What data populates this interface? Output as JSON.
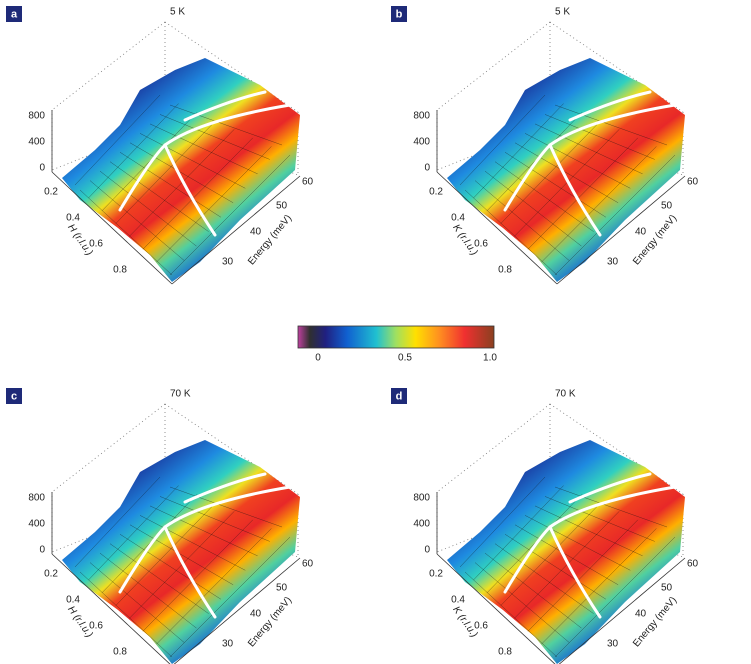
{
  "colorbar": {
    "ticks": [
      "0",
      "0.5",
      "1.0"
    ]
  },
  "panels": [
    {
      "label": "a",
      "temperature": "5 K",
      "z_ticks": [
        "800",
        "400",
        "0"
      ],
      "x_title": "H (r.l.u.)",
      "x_ticks": [
        "0.2",
        "0.4",
        "0.6",
        "0.8"
      ],
      "energy_title": "Energy (meV)",
      "energy_ticks": [
        "60",
        "50",
        "40",
        "30"
      ]
    },
    {
      "label": "b",
      "temperature": "5 K",
      "z_ticks": [
        "800",
        "400",
        "0"
      ],
      "x_title": "K (r.l.u.)",
      "x_ticks": [
        "0.2",
        "0.4",
        "0.6",
        "0.8"
      ],
      "energy_title": "Energy (meV)",
      "energy_ticks": [
        "60",
        "50",
        "40",
        "30"
      ]
    },
    {
      "label": "c",
      "temperature": "70 K",
      "z_ticks": [
        "800",
        "400",
        "0"
      ],
      "x_title": "H (r.l.u.)",
      "x_ticks": [
        "0.2",
        "0.4",
        "0.6",
        "0.8"
      ],
      "energy_title": "Energy (meV)",
      "energy_ticks": [
        "60",
        "50",
        "40",
        "30"
      ]
    },
    {
      "label": "d",
      "temperature": "70 K",
      "z_ticks": [
        "800",
        "400",
        "0"
      ],
      "x_title": "K (r.l.u.)",
      "x_ticks": [
        "0.2",
        "0.4",
        "0.6",
        "0.8"
      ],
      "energy_title": "Energy (meV)",
      "energy_ticks": [
        "60",
        "50",
        "40",
        "30"
      ]
    }
  ]
}
